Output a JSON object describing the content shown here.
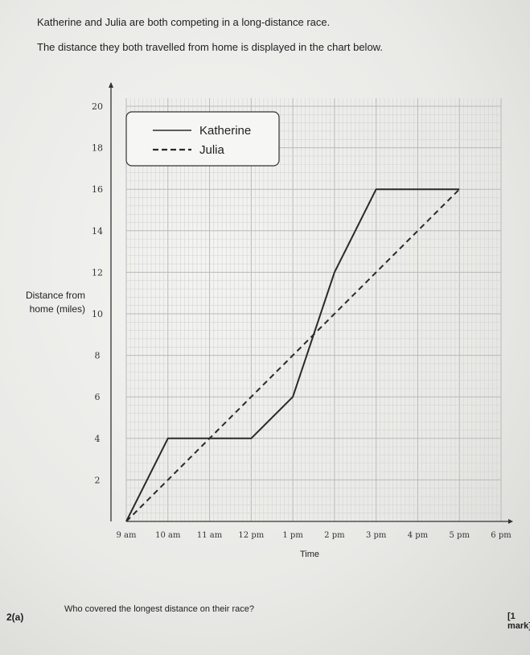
{
  "intro": {
    "line1": "Katherine and Julia are both competing in a long-distance race.",
    "line2": "The distance they both travelled from home is displayed in the chart below."
  },
  "chart_data": {
    "type": "line",
    "xlabel": "Time",
    "ylabel_lines": [
      "Distance from",
      "home (miles)"
    ],
    "x_tick_labels": [
      "9 am",
      "10 am",
      "11 am",
      "12 pm",
      "1 pm",
      "2 pm",
      "3 pm",
      "4 pm",
      "5 pm",
      "6 pm"
    ],
    "y_ticks": [
      2,
      4,
      6,
      8,
      10,
      12,
      14,
      16,
      18,
      20
    ],
    "xlim": [
      0,
      9.5
    ],
    "ylim": [
      0,
      20
    ],
    "x_unit_note": "hours after 9 am",
    "grid": true,
    "legend_position": "top-left",
    "series": [
      {
        "name": "Katherine",
        "style": "solid",
        "color": "#2a2a2a",
        "points": [
          [
            0,
            0
          ],
          [
            1,
            4
          ],
          [
            2,
            4
          ],
          [
            3,
            4
          ],
          [
            4,
            6
          ],
          [
            5,
            12
          ],
          [
            6,
            16
          ],
          [
            8,
            16
          ]
        ]
      },
      {
        "name": "Julia",
        "style": "dashed",
        "color": "#2a2a2a",
        "points": [
          [
            0,
            0
          ],
          [
            8,
            16
          ]
        ]
      }
    ]
  },
  "question": {
    "number": "2(a)",
    "text": "Who covered the longest distance on their race?",
    "marks": "[1 mark]"
  }
}
